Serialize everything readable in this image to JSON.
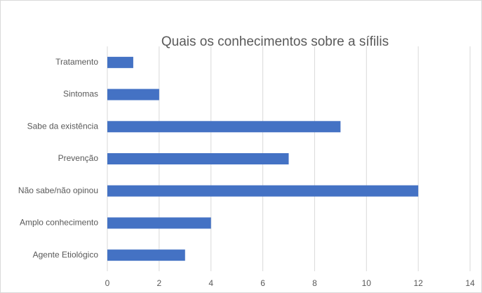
{
  "chart_data": {
    "type": "bar",
    "orientation": "horizontal",
    "title": "Quais os conhecimentos sobre a sífilis",
    "categories": [
      "Tratamento",
      "Sintomas",
      "Sabe da existência",
      "Prevenção",
      "Não sabe/não opinou",
      "Amplo conhecimento",
      "Agente Etiológico"
    ],
    "values": [
      1,
      2,
      9,
      7,
      12,
      4,
      3
    ],
    "color": "#4472c4",
    "xlim": [
      0,
      14
    ],
    "xticks": [
      0,
      2,
      4,
      6,
      8,
      10,
      12,
      14
    ],
    "grid": true
  }
}
